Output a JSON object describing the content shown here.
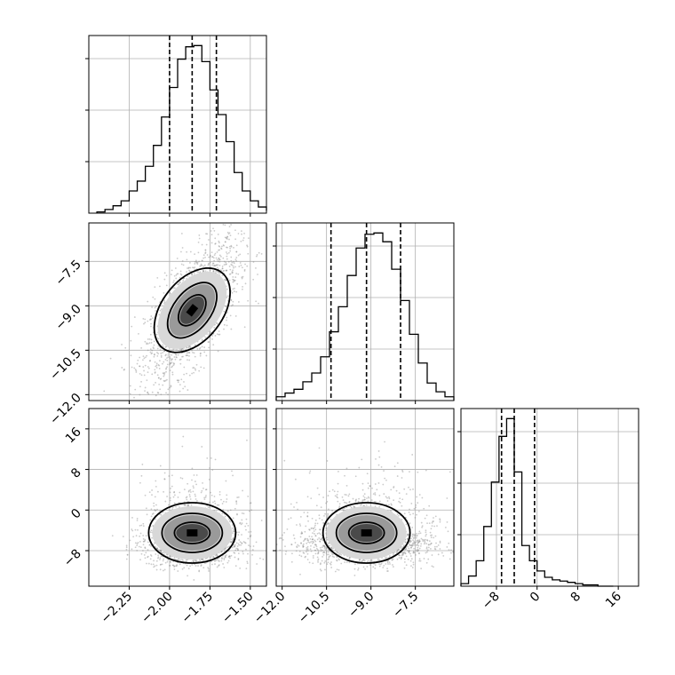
{
  "chart_data": {
    "type": "corner",
    "grid": true,
    "parameters": [
      {
        "index": 0,
        "range": [
          -2.5,
          -1.4
        ],
        "ticks": [
          -2.25,
          -2.0,
          -1.75,
          -1.5
        ],
        "tick_labels": [
          "−2.25",
          "−2.00",
          "−1.75",
          "−1.50"
        ],
        "quantiles": [
          -2.0,
          -1.86,
          -1.71
        ]
      },
      {
        "index": 1,
        "range": [
          -12.2,
          -6.2
        ],
        "ticks": [
          -12.0,
          -10.5,
          -9.0,
          -7.5
        ],
        "tick_labels": [
          "−12.0",
          "−10.5",
          "−9.0",
          "−7.5"
        ],
        "quantiles": [
          -10.35,
          -9.15,
          -8.0
        ]
      },
      {
        "index": 2,
        "range": [
          -15,
          20
        ],
        "ticks": [
          -8,
          0,
          8,
          16
        ],
        "tick_labels": [
          "−8",
          "0",
          "8",
          "16"
        ],
        "quantiles": [
          -7.0,
          -4.5,
          -0.5
        ]
      }
    ],
    "histograms": [
      {
        "param": 0,
        "bins": [
          -2.45,
          -2.4,
          -2.35,
          -2.3,
          -2.25,
          -2.2,
          -2.15,
          -2.1,
          -2.05,
          -2.0,
          -1.95,
          -1.9,
          -1.85,
          -1.8,
          -1.75,
          -1.7,
          -1.65,
          -1.6,
          -1.55,
          -1.5,
          -1.45,
          -1.4
        ],
        "counts": [
          1,
          3,
          6,
          10,
          18,
          26,
          38,
          55,
          78,
          102,
          125,
          135,
          136,
          123,
          100,
          80,
          58,
          33,
          18,
          10,
          5,
          2
        ]
      },
      {
        "param": 1,
        "bins": [
          -12.2,
          -11.9,
          -11.6,
          -11.3,
          -11.0,
          -10.7,
          -10.4,
          -10.1,
          -9.8,
          -9.5,
          -9.2,
          -8.9,
          -8.6,
          -8.3,
          -8.0,
          -7.7,
          -7.4,
          -7.1,
          -6.8,
          -6.5,
          -6.2
        ],
        "counts": [
          3,
          6,
          9,
          15,
          22,
          35,
          55,
          75,
          100,
          122,
          133,
          134,
          127,
          105,
          80,
          53,
          30,
          14,
          7,
          3
        ]
      },
      {
        "param": 2,
        "bins": [
          -15,
          -13.5,
          -12,
          -10.5,
          -9,
          -7.5,
          -6,
          -4.5,
          -3,
          -1.5,
          0,
          1.5,
          3,
          4.5,
          6,
          7.5,
          9,
          10.5,
          12,
          13.5,
          15
        ],
        "counts": [
          2,
          8,
          20,
          47,
          82,
          118,
          132,
          90,
          32,
          20,
          12,
          7,
          5,
          4,
          3,
          2,
          1,
          1,
          0,
          0
        ]
      }
    ],
    "pairs": [
      {
        "x": 0,
        "y": 1,
        "correlation": 0.65
      },
      {
        "x": 0,
        "y": 2,
        "correlation": 0.0
      },
      {
        "x": 1,
        "y": 2,
        "correlation": 0.0
      }
    ],
    "contour_levels": [
      0.39,
      0.86,
      0.99
    ]
  }
}
